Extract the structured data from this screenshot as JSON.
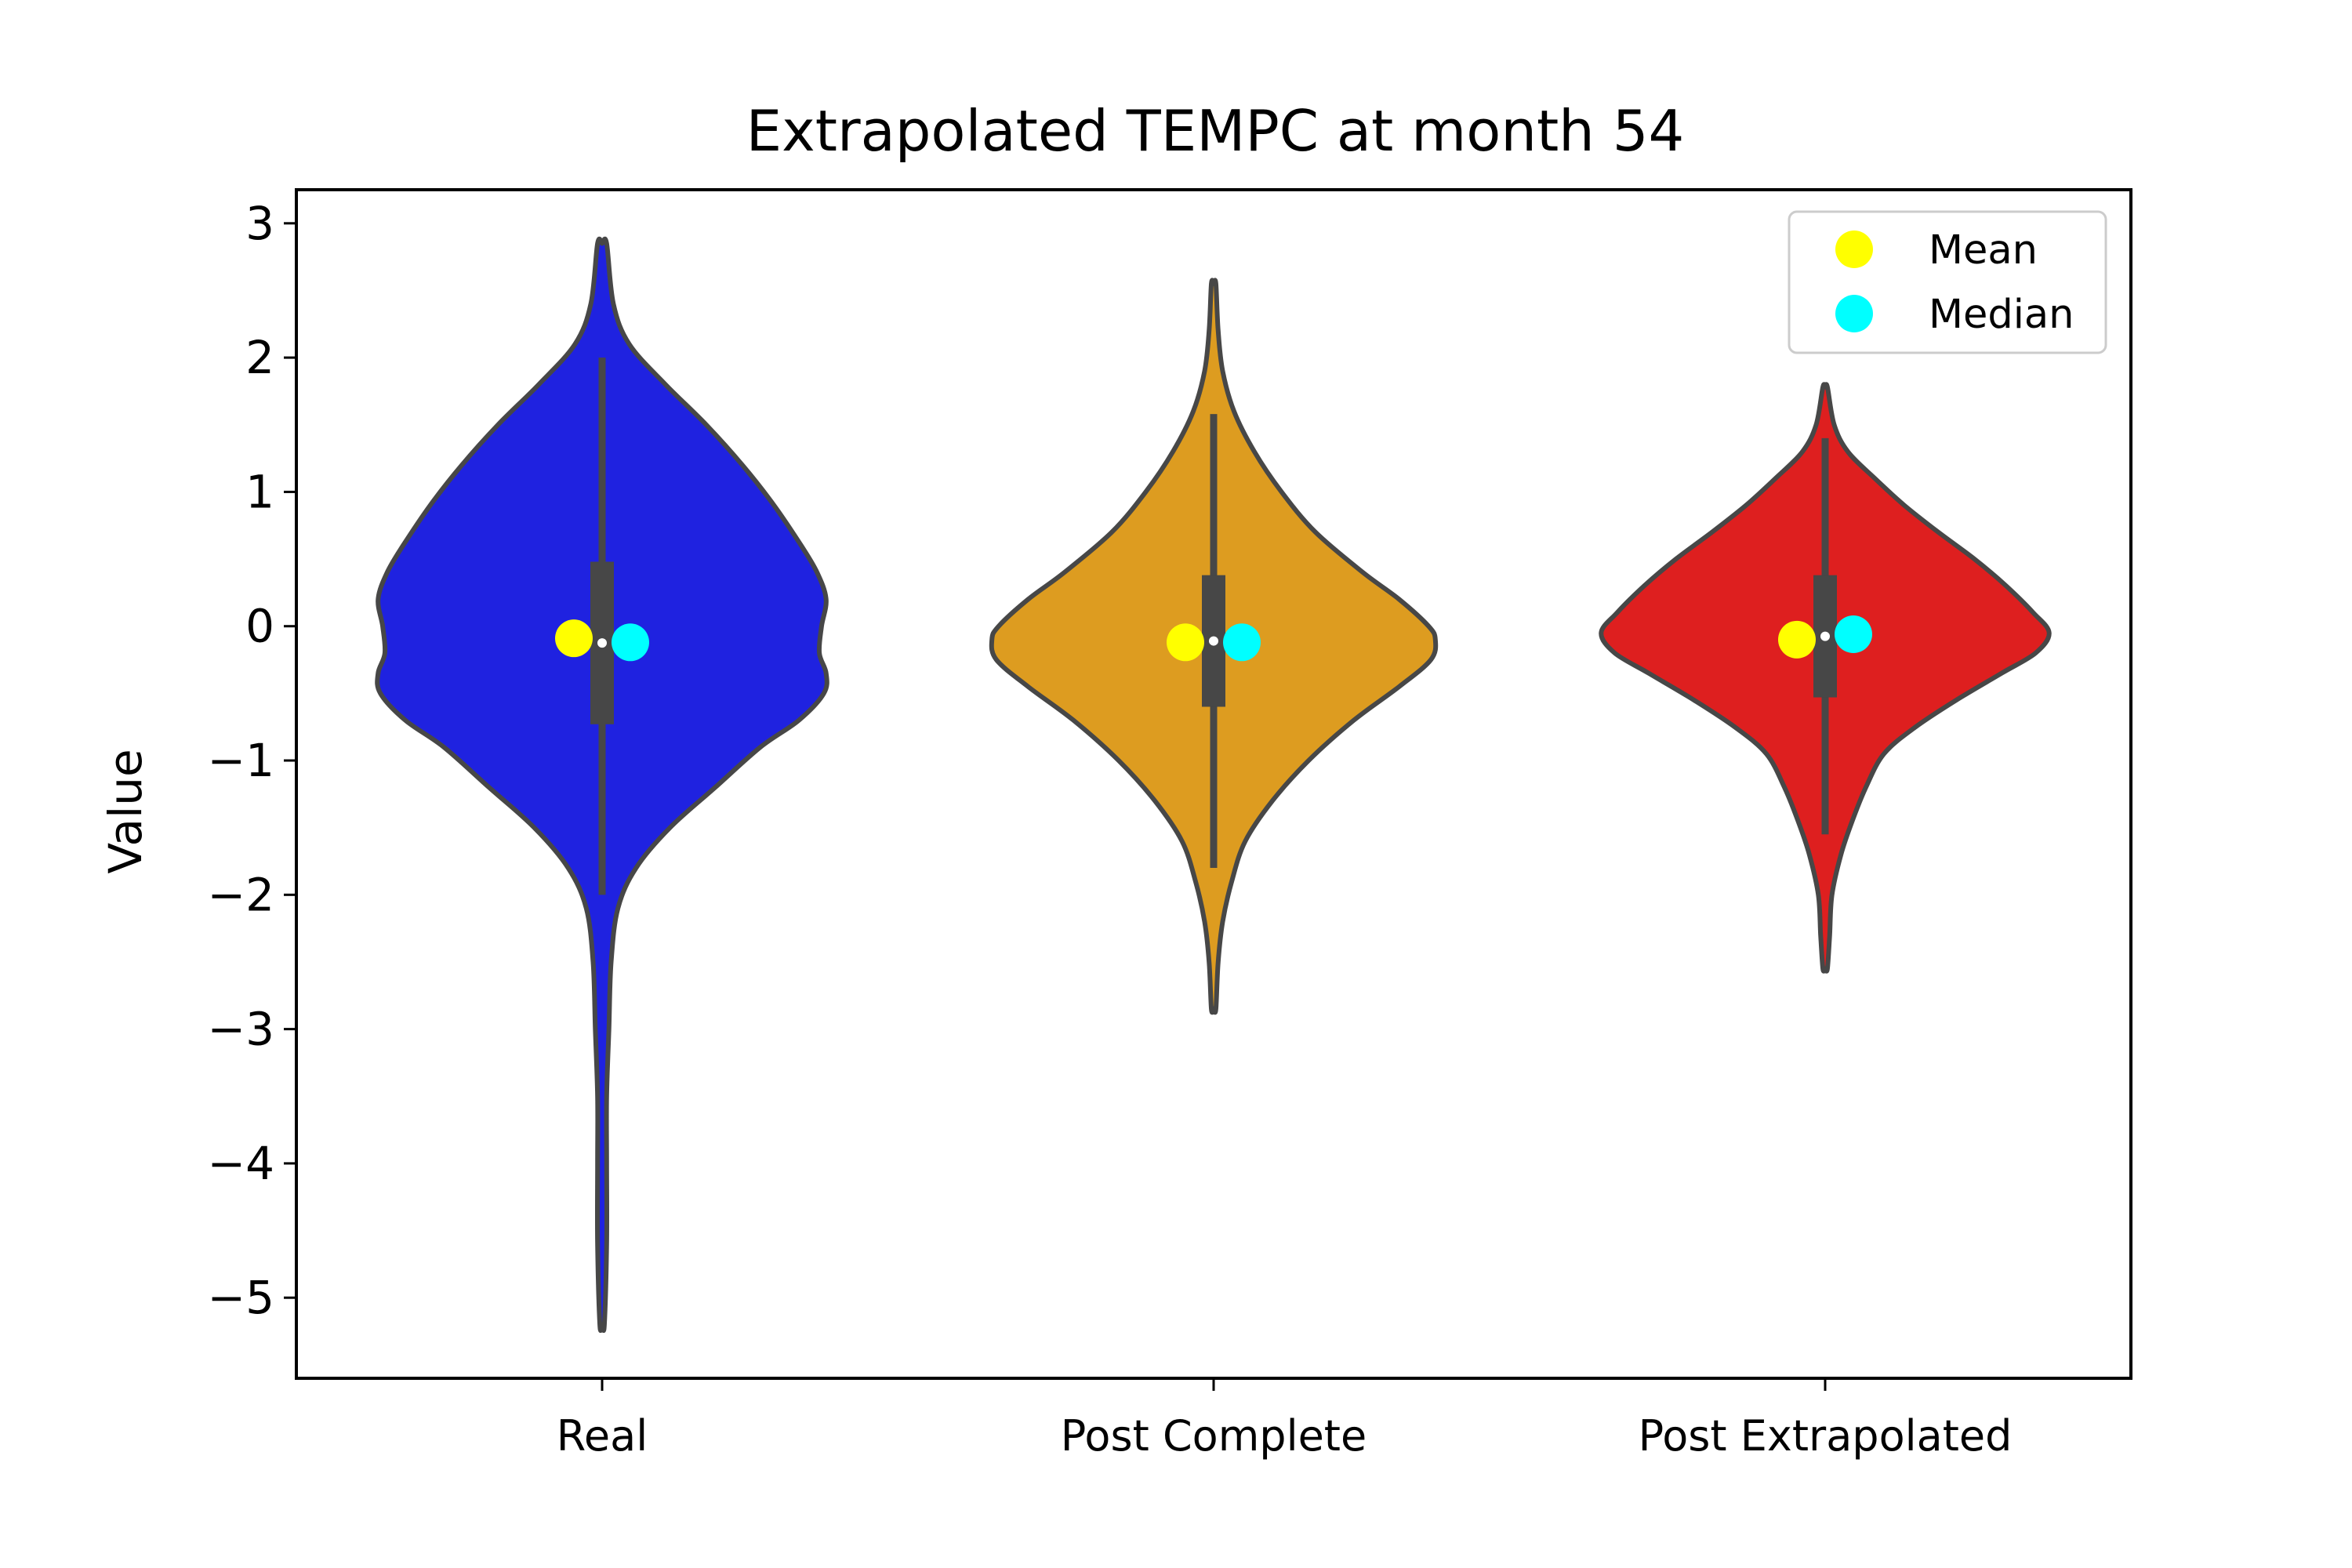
{
  "chart_data": {
    "type": "violin",
    "title": "Extrapolated TEMPC at month 54",
    "xlabel": "",
    "ylabel": "Value",
    "categories": [
      "Real",
      "Post Complete",
      "Post Extrapolated"
    ],
    "ylim": [
      -5.6,
      3.25
    ],
    "yticks": [
      3,
      2,
      1,
      0,
      -1,
      -2,
      -3,
      -4,
      -5
    ],
    "ytick_labels": [
      "3",
      "2",
      "1",
      "0",
      "−1",
      "−2",
      "−3",
      "−4",
      "−5"
    ],
    "grid": false,
    "legend": {
      "position": "top-right",
      "entries": [
        {
          "label": "Mean",
          "color": "#ffff00"
        },
        {
          "label": "Median",
          "color": "#00ffff"
        }
      ]
    },
    "series": [
      {
        "category": "Real",
        "color": "#1f22e0",
        "min": -5.2,
        "max": 2.85,
        "q1": -0.73,
        "q3": 0.48,
        "whisker_low": -2.0,
        "whisker_high": 2.0,
        "median": -0.12,
        "mean": -0.09,
        "density_profile": [
          [
            2.85,
            0.02
          ],
          [
            2.4,
            0.05
          ],
          [
            2.1,
            0.12
          ],
          [
            1.8,
            0.28
          ],
          [
            1.5,
            0.46
          ],
          [
            1.2,
            0.62
          ],
          [
            0.9,
            0.76
          ],
          [
            0.6,
            0.88
          ],
          [
            0.4,
            0.95
          ],
          [
            0.2,
            0.99
          ],
          [
            0.0,
            0.97
          ],
          [
            -0.2,
            0.96
          ],
          [
            -0.35,
            0.99
          ],
          [
            -0.5,
            0.98
          ],
          [
            -0.7,
            0.87
          ],
          [
            -0.9,
            0.7
          ],
          [
            -1.2,
            0.5
          ],
          [
            -1.5,
            0.3
          ],
          [
            -1.8,
            0.15
          ],
          [
            -2.1,
            0.07
          ],
          [
            -2.5,
            0.04
          ],
          [
            -3.0,
            0.03
          ],
          [
            -3.5,
            0.02
          ],
          [
            -4.0,
            0.02
          ],
          [
            -4.6,
            0.02
          ],
          [
            -5.2,
            0.01
          ]
        ]
      },
      {
        "category": "Post Complete",
        "color": "#dd9c20",
        "min": -2.85,
        "max": 2.55,
        "q1": -0.6,
        "q3": 0.38,
        "whisker_low": -1.8,
        "whisker_high": 1.58,
        "median": -0.12,
        "mean": -0.12,
        "density_profile": [
          [
            2.55,
            0.01
          ],
          [
            2.2,
            0.02
          ],
          [
            1.9,
            0.04
          ],
          [
            1.6,
            0.09
          ],
          [
            1.3,
            0.18
          ],
          [
            1.0,
            0.3
          ],
          [
            0.7,
            0.45
          ],
          [
            0.4,
            0.66
          ],
          [
            0.2,
            0.82
          ],
          [
            0.0,
            0.95
          ],
          [
            -0.1,
            0.98
          ],
          [
            -0.25,
            0.96
          ],
          [
            -0.45,
            0.82
          ],
          [
            -0.7,
            0.62
          ],
          [
            -1.0,
            0.42
          ],
          [
            -1.3,
            0.26
          ],
          [
            -1.6,
            0.14
          ],
          [
            -1.9,
            0.08
          ],
          [
            -2.2,
            0.04
          ],
          [
            -2.5,
            0.02
          ],
          [
            -2.85,
            0.01
          ]
        ]
      },
      {
        "category": "Post Extrapolated",
        "color": "#de1f1f",
        "min": -2.55,
        "max": 1.78,
        "q1": -0.53,
        "q3": 0.38,
        "whisker_low": -1.55,
        "whisker_high": 1.4,
        "median": -0.06,
        "mean": -0.1,
        "density_profile": [
          [
            1.78,
            0.01
          ],
          [
            1.5,
            0.04
          ],
          [
            1.3,
            0.1
          ],
          [
            1.1,
            0.22
          ],
          [
            0.9,
            0.35
          ],
          [
            0.7,
            0.5
          ],
          [
            0.5,
            0.66
          ],
          [
            0.3,
            0.8
          ],
          [
            0.1,
            0.92
          ],
          [
            -0.05,
            0.99
          ],
          [
            -0.2,
            0.93
          ],
          [
            -0.35,
            0.78
          ],
          [
            -0.55,
            0.58
          ],
          [
            -0.75,
            0.4
          ],
          [
            -0.95,
            0.26
          ],
          [
            -1.2,
            0.18
          ],
          [
            -1.45,
            0.12
          ],
          [
            -1.7,
            0.07
          ],
          [
            -2.0,
            0.03
          ],
          [
            -2.3,
            0.02
          ],
          [
            -2.55,
            0.01
          ]
        ]
      }
    ]
  }
}
